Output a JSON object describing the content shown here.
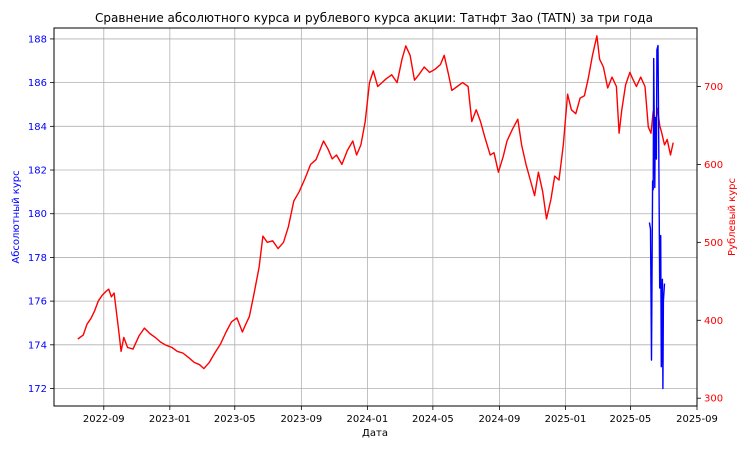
{
  "chart_data": {
    "type": "line",
    "title": "Сравнение абсолютного курса и рублевого курса акции: Татнфт 3ао (TATN) за три года",
    "xlabel": "Дата",
    "ylabel_left": "Абсолютный курс",
    "ylabel_right": "Рублевый курс",
    "grid": true,
    "colors": {
      "left": "#0000ff",
      "right": "#ff0000",
      "grid": "#b0b0b0"
    },
    "x_ticks": [
      "2022-09",
      "2023-01",
      "2023-05",
      "2023-09",
      "2024-01",
      "2024-05",
      "2024-09",
      "2025-01",
      "2025-05",
      "2025-09"
    ],
    "xlim": [
      "2022-06-01",
      "2025-09-01"
    ],
    "y_left_ticks": [
      172,
      174,
      176,
      178,
      180,
      182,
      184,
      186,
      188
    ],
    "ylim_left": [
      171.2,
      188.5
    ],
    "y_right_ticks": [
      300,
      400,
      500,
      600,
      700
    ],
    "ylim_right": [
      290,
      775
    ],
    "series": [
      {
        "axis": "right",
        "points": [
          [
            "2022-07-15",
            376
          ],
          [
            "2022-07-25",
            381
          ],
          [
            "2022-08-01",
            395
          ],
          [
            "2022-08-08",
            402
          ],
          [
            "2022-08-15",
            412
          ],
          [
            "2022-08-22",
            425
          ],
          [
            "2022-08-29",
            432
          ],
          [
            "2022-09-05",
            437
          ],
          [
            "2022-09-10",
            440
          ],
          [
            "2022-09-15",
            430
          ],
          [
            "2022-09-20",
            435
          ],
          [
            "2022-09-28",
            390
          ],
          [
            "2022-10-03",
            360
          ],
          [
            "2022-10-08",
            378
          ],
          [
            "2022-10-15",
            365
          ],
          [
            "2022-10-25",
            363
          ],
          [
            "2022-11-05",
            380
          ],
          [
            "2022-11-15",
            390
          ],
          [
            "2022-11-25",
            383
          ],
          [
            "2022-12-05",
            378
          ],
          [
            "2022-12-15",
            372
          ],
          [
            "2022-12-25",
            368
          ],
          [
            "2023-01-05",
            365
          ],
          [
            "2023-01-15",
            360
          ],
          [
            "2023-01-25",
            358
          ],
          [
            "2023-02-05",
            352
          ],
          [
            "2023-02-15",
            346
          ],
          [
            "2023-02-25",
            343
          ],
          [
            "2023-03-05",
            338
          ],
          [
            "2023-03-15",
            346
          ],
          [
            "2023-03-25",
            358
          ],
          [
            "2023-04-05",
            370
          ],
          [
            "2023-04-15",
            385
          ],
          [
            "2023-04-25",
            398
          ],
          [
            "2023-05-05",
            403
          ],
          [
            "2023-05-15",
            385
          ],
          [
            "2023-05-20",
            393
          ],
          [
            "2023-05-28",
            405
          ],
          [
            "2023-06-05",
            432
          ],
          [
            "2023-06-15",
            468
          ],
          [
            "2023-06-22",
            508
          ],
          [
            "2023-06-30",
            500
          ],
          [
            "2023-07-10",
            502
          ],
          [
            "2023-07-20",
            492
          ],
          [
            "2023-07-30",
            500
          ],
          [
            "2023-08-08",
            520
          ],
          [
            "2023-08-18",
            553
          ],
          [
            "2023-08-28",
            565
          ],
          [
            "2023-09-08",
            582
          ],
          [
            "2023-09-18",
            600
          ],
          [
            "2023-09-28",
            606
          ],
          [
            "2023-10-05",
            618
          ],
          [
            "2023-10-12",
            630
          ],
          [
            "2023-10-20",
            620
          ],
          [
            "2023-10-28",
            607
          ],
          [
            "2023-11-05",
            612
          ],
          [
            "2023-11-15",
            600
          ],
          [
            "2023-11-25",
            618
          ],
          [
            "2023-12-05",
            630
          ],
          [
            "2023-12-12",
            612
          ],
          [
            "2023-12-20",
            625
          ],
          [
            "2023-12-28",
            655
          ],
          [
            "2024-01-05",
            705
          ],
          [
            "2024-01-12",
            720
          ],
          [
            "2024-01-20",
            700
          ],
          [
            "2024-01-28",
            705
          ],
          [
            "2024-02-05",
            710
          ],
          [
            "2024-02-15",
            715
          ],
          [
            "2024-02-25",
            705
          ],
          [
            "2024-03-05",
            735
          ],
          [
            "2024-03-12",
            752
          ],
          [
            "2024-03-20",
            740
          ],
          [
            "2024-03-28",
            708
          ],
          [
            "2024-04-05",
            715
          ],
          [
            "2024-04-15",
            725
          ],
          [
            "2024-04-25",
            718
          ],
          [
            "2024-05-05",
            722
          ],
          [
            "2024-05-15",
            728
          ],
          [
            "2024-05-22",
            740
          ],
          [
            "2024-05-30",
            715
          ],
          [
            "2024-06-05",
            695
          ],
          [
            "2024-06-15",
            700
          ],
          [
            "2024-06-25",
            705
          ],
          [
            "2024-07-05",
            700
          ],
          [
            "2024-07-12",
            655
          ],
          [
            "2024-07-20",
            670
          ],
          [
            "2024-07-28",
            655
          ],
          [
            "2024-08-05",
            635
          ],
          [
            "2024-08-15",
            612
          ],
          [
            "2024-08-22",
            615
          ],
          [
            "2024-08-30",
            590
          ],
          [
            "2024-09-08",
            610
          ],
          [
            "2024-09-15",
            630
          ],
          [
            "2024-09-25",
            645
          ],
          [
            "2024-10-05",
            658
          ],
          [
            "2024-10-12",
            625
          ],
          [
            "2024-10-20",
            600
          ],
          [
            "2024-10-28",
            580
          ],
          [
            "2024-11-05",
            560
          ],
          [
            "2024-11-12",
            590
          ],
          [
            "2024-11-20",
            565
          ],
          [
            "2024-11-27",
            530
          ],
          [
            "2024-12-05",
            555
          ],
          [
            "2024-12-12",
            585
          ],
          [
            "2024-12-20",
            580
          ],
          [
            "2024-12-28",
            625
          ],
          [
            "2025-01-05",
            690
          ],
          [
            "2025-01-12",
            670
          ],
          [
            "2025-01-20",
            665
          ],
          [
            "2025-01-28",
            685
          ],
          [
            "2025-02-05",
            688
          ],
          [
            "2025-02-12",
            710
          ],
          [
            "2025-02-20",
            740
          ],
          [
            "2025-02-28",
            765
          ],
          [
            "2025-03-05",
            735
          ],
          [
            "2025-03-12",
            725
          ],
          [
            "2025-03-20",
            698
          ],
          [
            "2025-03-28",
            712
          ],
          [
            "2025-04-05",
            700
          ],
          [
            "2025-04-10",
            640
          ],
          [
            "2025-04-15",
            670
          ],
          [
            "2025-04-22",
            702
          ],
          [
            "2025-04-30",
            718
          ],
          [
            "2025-05-05",
            710
          ],
          [
            "2025-05-12",
            700
          ],
          [
            "2025-05-20",
            712
          ],
          [
            "2025-05-28",
            700
          ],
          [
            "2025-06-03",
            648
          ],
          [
            "2025-06-08",
            640
          ],
          [
            "2025-06-12",
            668
          ],
          [
            "2025-06-16",
            650
          ],
          [
            "2025-06-20",
            672
          ],
          [
            "2025-06-24",
            650
          ],
          [
            "2025-06-28",
            640
          ],
          [
            "2025-07-03",
            625
          ],
          [
            "2025-07-08",
            632
          ],
          [
            "2025-07-14",
            612
          ],
          [
            "2025-07-19",
            628
          ]
        ]
      },
      {
        "axis": "left",
        "points": [
          [
            "2025-06-05",
            179.6
          ],
          [
            "2025-06-07",
            179.3
          ],
          [
            "2025-06-09",
            173.3
          ],
          [
            "2025-06-11",
            181.5
          ],
          [
            "2025-06-12",
            181.1
          ],
          [
            "2025-06-13",
            187.1
          ],
          [
            "2025-06-15",
            181.2
          ],
          [
            "2025-06-16",
            184.4
          ],
          [
            "2025-06-18",
            182.5
          ],
          [
            "2025-06-19",
            187.5
          ],
          [
            "2025-06-21",
            187.7
          ],
          [
            "2025-06-22",
            184.2
          ],
          [
            "2025-06-24",
            176.6
          ],
          [
            "2025-06-26",
            179.0
          ],
          [
            "2025-06-27",
            173.0
          ],
          [
            "2025-06-29",
            177.0
          ],
          [
            "2025-06-30",
            172.0
          ],
          [
            "2025-07-01",
            176.0
          ],
          [
            "2025-07-03",
            176.8
          ]
        ]
      }
    ]
  }
}
